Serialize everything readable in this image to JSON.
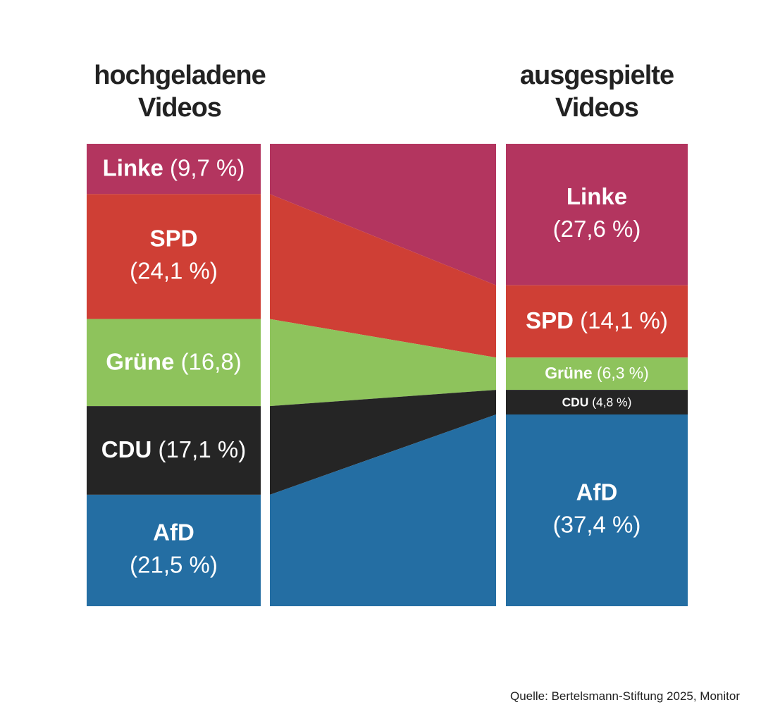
{
  "chart_data": {
    "type": "flow",
    "categories": [
      "Linke",
      "SPD",
      "Grüne",
      "CDU",
      "AfD"
    ],
    "colors": [
      "#b3355f",
      "#cf3f35",
      "#8ec35c",
      "#252525",
      "#246ea3"
    ],
    "series": [
      {
        "name": "hochgeladene Videos",
        "values": [
          9.7,
          24.1,
          16.8,
          17.1,
          21.5
        ],
        "value_labels": [
          "(9,7 %)",
          "(24,1 %)",
          "(16,8)",
          "(17,1 %)",
          "(21,5 %)"
        ]
      },
      {
        "name": "ausgespielte Videos",
        "values": [
          27.6,
          14.1,
          6.3,
          4.8,
          37.4
        ],
        "value_labels": [
          "(27,6 %)",
          "(14,1 %)",
          "(6,3 %)",
          "(4,8 %)",
          "(37,4 %)"
        ]
      }
    ],
    "source": "Quelle: Bertelsmann-Stiftung 2025, Monitor"
  }
}
